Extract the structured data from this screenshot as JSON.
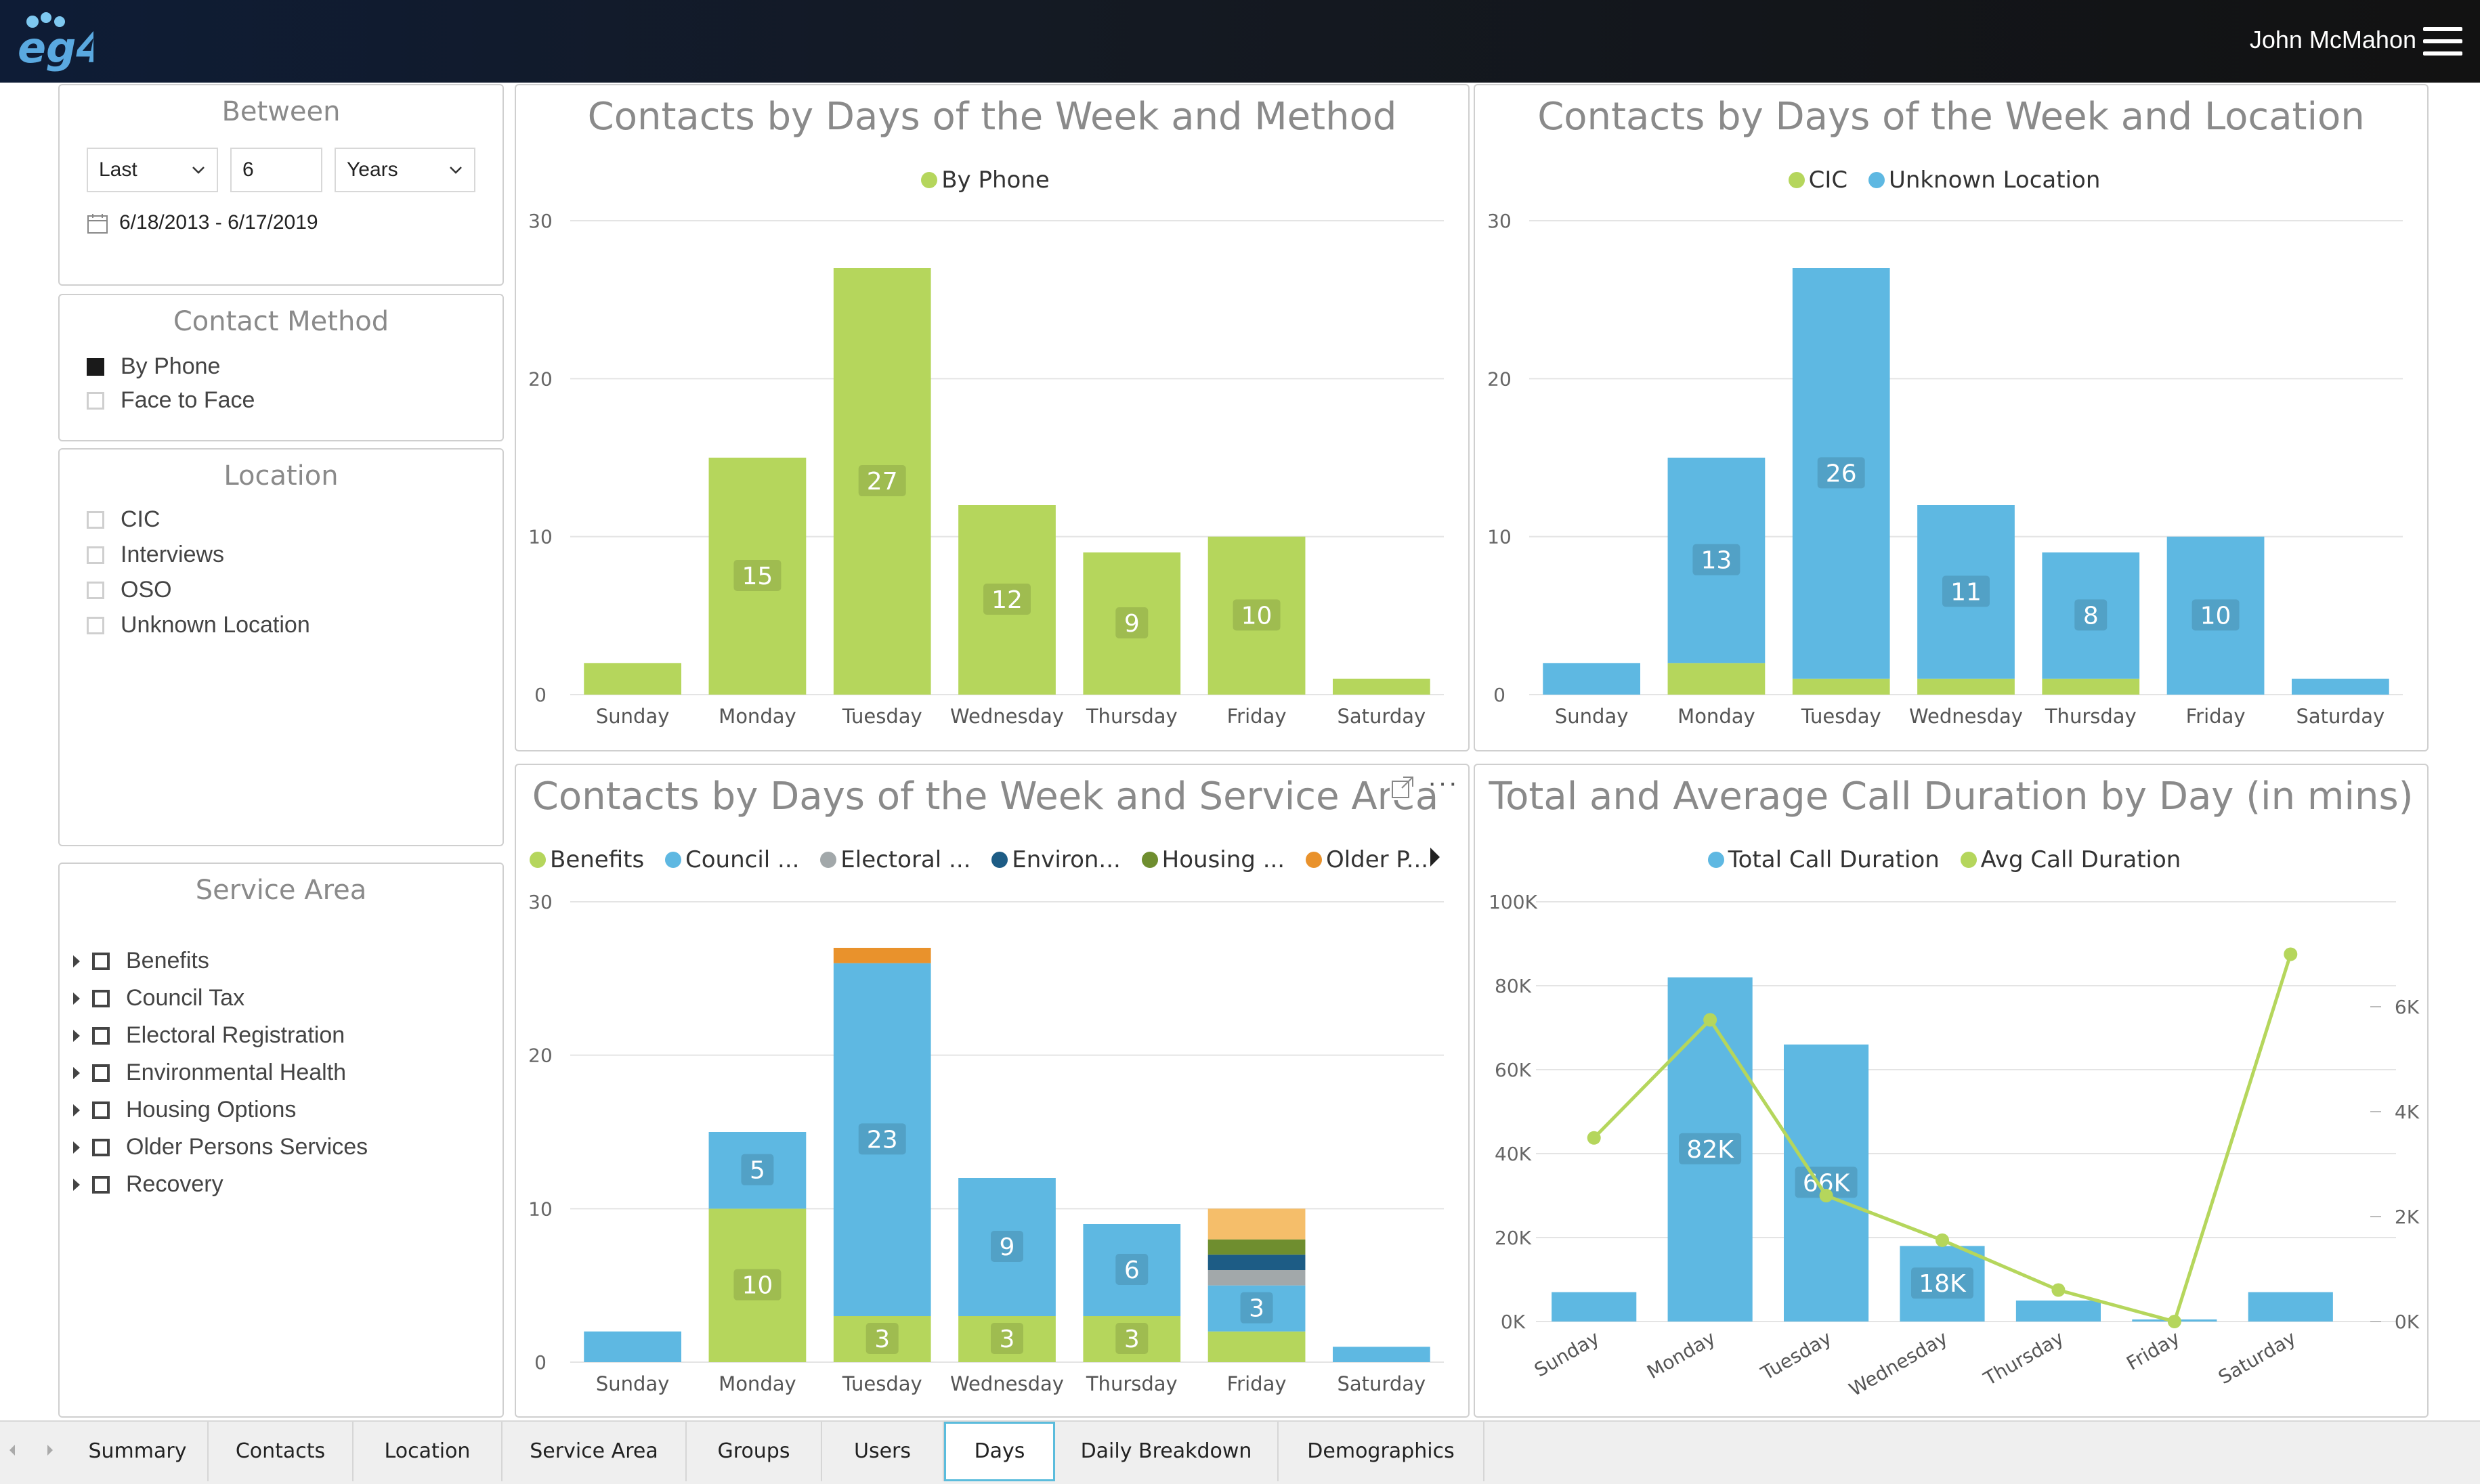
{
  "app": {
    "logo_text": "eg4",
    "user_name": "John McMahon"
  },
  "colors": {
    "green": "#b5d65c",
    "blue": "#5eb8e2",
    "gray": "#a2a8aa",
    "navy": "#1d5c85",
    "olive": "#6f8e2f",
    "orange": "#e9922c",
    "peach": "#f5be6a"
  },
  "filters": {
    "between": {
      "title": "Between",
      "mode": "Last",
      "amount": "6",
      "unit": "Years",
      "date_range": "6/18/2013 - 6/17/2019"
    },
    "contact_method": {
      "title": "Contact Method",
      "items": [
        {
          "label": "By Phone",
          "checked": true
        },
        {
          "label": "Face to Face",
          "checked": false
        }
      ]
    },
    "location": {
      "title": "Location",
      "items": [
        {
          "label": "CIC",
          "checked": false
        },
        {
          "label": "Interviews",
          "checked": false
        },
        {
          "label": "OSO",
          "checked": false
        },
        {
          "label": "Unknown Location",
          "checked": false
        }
      ]
    },
    "service_area": {
      "title": "Service Area",
      "items": [
        {
          "label": "Benefits"
        },
        {
          "label": "Council Tax"
        },
        {
          "label": "Electoral Registration"
        },
        {
          "label": "Environmental Health"
        },
        {
          "label": "Housing Options"
        },
        {
          "label": "Older Persons Services"
        },
        {
          "label": "Recovery"
        }
      ]
    }
  },
  "charts": {
    "method": {
      "title": "Contacts by Days of the Week and Method",
      "legend": [
        "By Phone"
      ]
    },
    "location": {
      "title": "Contacts by Days of the Week and Location",
      "legend": [
        "CIC",
        "Unknown Location"
      ]
    },
    "service": {
      "title": "Contacts by Days of the Week and Service Area",
      "legend": [
        "Benefits",
        "Council ...",
        "Electoral ...",
        "Environ...",
        "Housing ...",
        "Older P..."
      ]
    },
    "duration": {
      "title": "Total and Average Call Duration by Day (in mins)",
      "legend": [
        "Total Call Duration",
        "Avg Call Duration"
      ]
    }
  },
  "chart_data": [
    {
      "type": "bar",
      "title": "Contacts by Days of the Week and Method",
      "categories": [
        "Sunday",
        "Monday",
        "Tuesday",
        "Wednesday",
        "Thursday",
        "Friday",
        "Saturday"
      ],
      "ylim": [
        0,
        30
      ],
      "yticks": [
        0,
        10,
        20,
        30
      ],
      "series": [
        {
          "name": "By Phone",
          "values": [
            2,
            15,
            27,
            12,
            9,
            10,
            1
          ],
          "labels": [
            "",
            "15",
            "27",
            "12",
            "9",
            "10",
            ""
          ]
        }
      ]
    },
    {
      "type": "bar",
      "stacked": true,
      "title": "Contacts by Days of the Week and Location",
      "categories": [
        "Sunday",
        "Monday",
        "Tuesday",
        "Wednesday",
        "Thursday",
        "Friday",
        "Saturday"
      ],
      "ylim": [
        0,
        30
      ],
      "yticks": [
        0,
        10,
        20,
        30
      ],
      "series": [
        {
          "name": "CIC",
          "values": [
            0,
            2,
            1,
            1,
            1,
            0,
            0
          ]
        },
        {
          "name": "Unknown Location",
          "values": [
            2,
            13,
            26,
            11,
            8,
            10,
            1
          ],
          "labels": [
            "",
            "13",
            "26",
            "11",
            "8",
            "10",
            ""
          ]
        }
      ]
    },
    {
      "type": "bar",
      "stacked": true,
      "title": "Contacts by Days of the Week and Service Area",
      "categories": [
        "Sunday",
        "Monday",
        "Tuesday",
        "Wednesday",
        "Thursday",
        "Friday",
        "Saturday"
      ],
      "ylim": [
        0,
        30
      ],
      "yticks": [
        0,
        10,
        20,
        30
      ],
      "series": [
        {
          "name": "Benefits",
          "values": [
            0,
            10,
            3,
            3,
            3,
            2,
            0
          ],
          "labels": [
            "",
            "10",
            "3",
            "3",
            "3",
            "",
            ""
          ]
        },
        {
          "name": "Council ...",
          "values": [
            2,
            5,
            23,
            9,
            6,
            3,
            1
          ],
          "labels": [
            "",
            "5",
            "23",
            "9",
            "6",
            "3",
            ""
          ]
        },
        {
          "name": "Electoral ...",
          "values": [
            0,
            0,
            0,
            0,
            0,
            1,
            0
          ]
        },
        {
          "name": "Environ...",
          "values": [
            0,
            0,
            0,
            0,
            0,
            1,
            0
          ]
        },
        {
          "name": "Housing ...",
          "values": [
            0,
            0,
            0,
            0,
            0,
            1,
            0
          ]
        },
        {
          "name": "Older P...",
          "values": [
            0,
            0,
            1,
            0,
            0,
            0,
            0
          ]
        },
        {
          "name": "",
          "values": [
            0,
            0,
            0,
            0,
            0,
            2,
            0
          ]
        }
      ]
    },
    {
      "type": "bar",
      "title": "Total and Average Call Duration by Day (in mins)",
      "categories": [
        "Sunday",
        "Monday",
        "Tuesday",
        "Wednesday",
        "Thursday",
        "Friday",
        "Saturday"
      ],
      "ylim": [
        0,
        100000
      ],
      "yticks": [
        "0K",
        "20K",
        "40K",
        "60K",
        "80K",
        "100K"
      ],
      "y2lim": [
        0,
        8000
      ],
      "y2ticks": [
        "0K",
        "2K",
        "4K",
        "6K"
      ],
      "series": [
        {
          "name": "Total Call Duration",
          "type": "bar",
          "values": [
            7000,
            82000,
            66000,
            18000,
            5000,
            500,
            7000
          ],
          "labels": [
            "",
            "82K",
            "66K",
            "18K",
            "",
            "",
            ""
          ]
        },
        {
          "name": "Avg Call Duration",
          "type": "line",
          "axis": "right",
          "values": [
            3500,
            5750,
            2400,
            1550,
            600,
            0,
            7000
          ]
        }
      ]
    }
  ],
  "tabs": [
    "Summary",
    "Contacts",
    "Location",
    "Service Area",
    "Groups",
    "Users",
    "Days",
    "Daily Breakdown",
    "Demographics"
  ],
  "active_tab": "Days"
}
